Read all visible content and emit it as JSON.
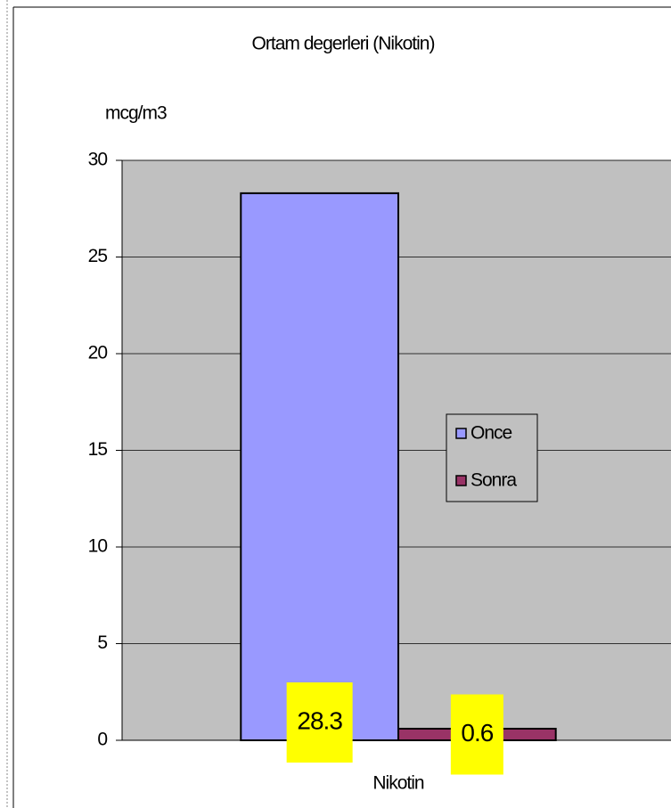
{
  "chart_data": {
    "type": "bar",
    "title": "Ortam degerleri (Nikotin)",
    "y_label": "mcg/m3",
    "categories": [
      "Nikotin"
    ],
    "series": [
      {
        "name": "Once",
        "color": "#9999ff",
        "values": [
          28.3
        ]
      },
      {
        "name": "Sonra",
        "color": "#993366",
        "values": [
          0.6
        ]
      }
    ],
    "ylim": [
      0,
      30
    ],
    "yticks": [
      0,
      5,
      10,
      15,
      20,
      25,
      30
    ],
    "grid": true,
    "legend": "right",
    "plot_background": "#c0c0c0",
    "label_background": "#ffff00"
  }
}
